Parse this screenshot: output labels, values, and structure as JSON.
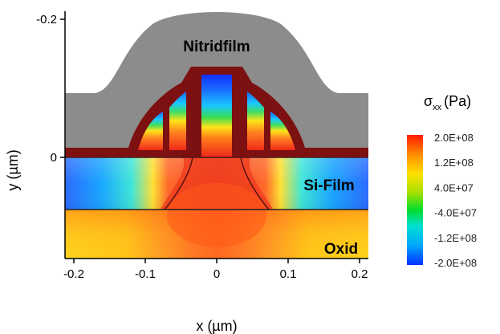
{
  "chart_data": {
    "type": "heatmap",
    "xlabel": "x (µm)",
    "ylabel": "y (µm)",
    "xlim": [
      -0.22,
      0.22
    ],
    "ylim": [
      -0.16,
      0.22
    ],
    "x_ticks": [
      {
        "value": -0.2,
        "label": "-0.2"
      },
      {
        "value": -0.1,
        "label": "-0.1"
      },
      {
        "value": 0,
        "label": "0"
      },
      {
        "value": 0.1,
        "label": "0.1"
      },
      {
        "value": 0.2,
        "label": "0.2"
      }
    ],
    "y_ticks": [
      {
        "value": 0.2,
        "label": "-0.2"
      },
      {
        "value": 0,
        "label": "0"
      }
    ],
    "regions": [
      {
        "name": "Nitridfilm",
        "label": "Nitridfilm"
      },
      {
        "name": "Si-Film",
        "label": "Si-Film"
      },
      {
        "name": "Oxid",
        "label": "Oxid"
      }
    ],
    "colorbar": {
      "title_main": "σ",
      "title_sub": "xx",
      "title_unit": "(Pa)",
      "range": [
        -200000000,
        200000000
      ],
      "labels": [
        "2.0E+08",
        "1.2E+08",
        "4.0E+07",
        "-4.0E+07",
        "-1.2E+08",
        "-2.0E+08"
      ],
      "colors": [
        "#ff1a00",
        "#ff8c00",
        "#ffe100",
        "#a0e000",
        "#00dd30",
        "#00e0d0",
        "#00a8ff",
        "#0038ff"
      ]
    },
    "colors": {
      "nitride": "#8c8c8c",
      "gate_border": "#7d1010",
      "oxide_base": "#ffd020"
    }
  }
}
